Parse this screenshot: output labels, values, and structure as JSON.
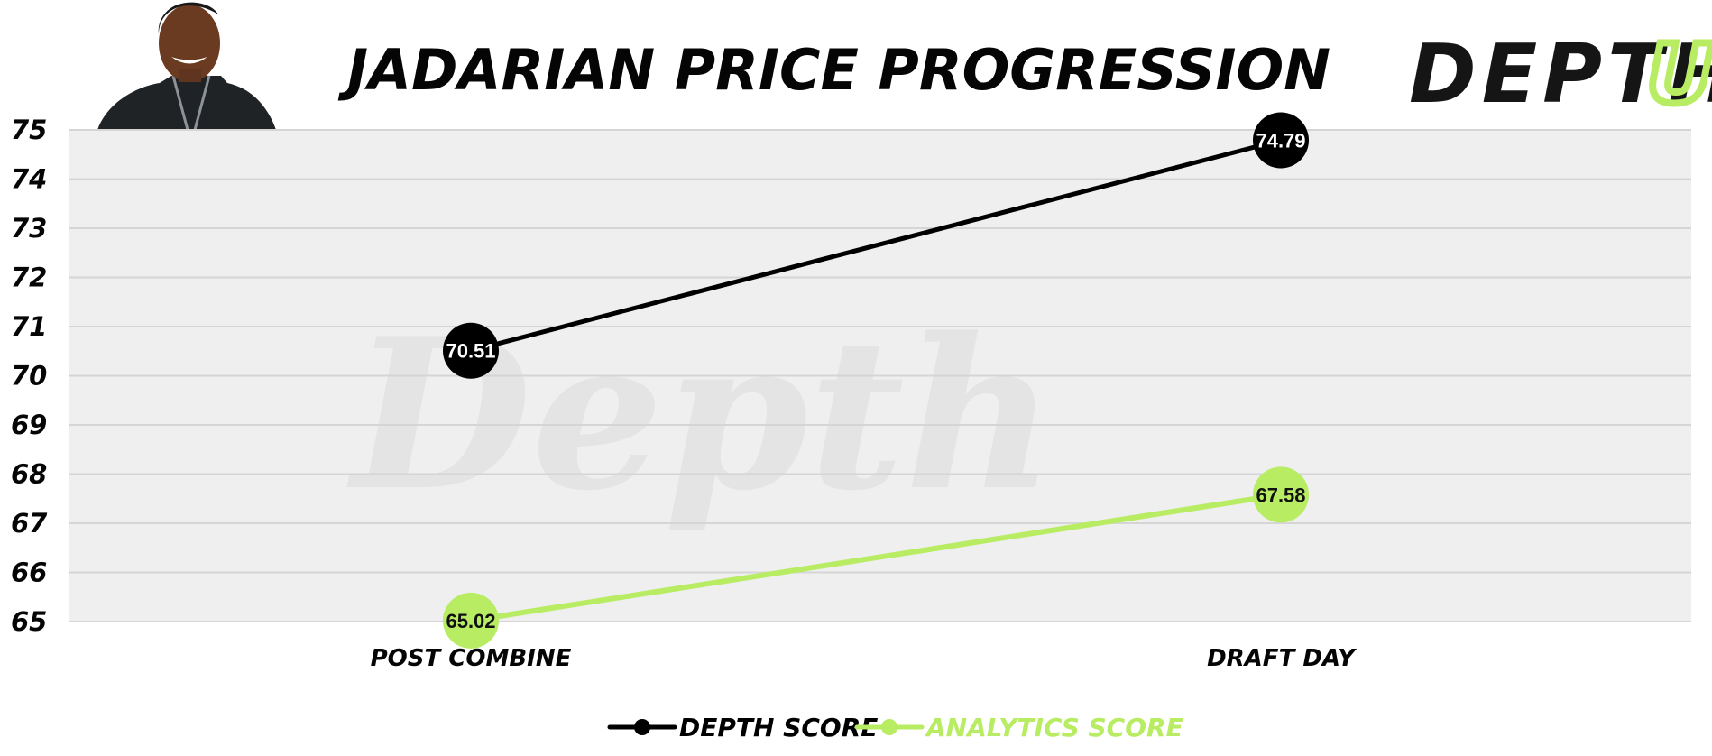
{
  "chart_data": {
    "type": "line",
    "title": "JADARIAN PRICE PROGRESSION",
    "logo_text": "DEPTH",
    "logo_accent_text": "U",
    "watermark_text": "Depth",
    "categories": [
      "POST COMBINE",
      "DRAFT DAY"
    ],
    "ylim": [
      65,
      75
    ],
    "yticks": [
      "75",
      "74",
      "73",
      "72",
      "71",
      "70",
      "69",
      "68",
      "67",
      "66",
      "65"
    ],
    "grid": true,
    "legend_position": "bottom-center",
    "series": [
      {
        "name": "DEPTH SCORE",
        "values": [
          70.51,
          74.79
        ],
        "labels": [
          "70.51",
          "74.79"
        ],
        "color": "#000000",
        "label_color": "#ffffff"
      },
      {
        "name": "ANALYTICS SCORE",
        "values": [
          65.02,
          67.58
        ],
        "labels": [
          "65.02",
          "67.58"
        ],
        "color": "#b8ec63",
        "label_color": "#111111"
      }
    ],
    "colors": {
      "plot_background": "#efefef",
      "grid": "#d5d5d5",
      "text": "#050505",
      "logo": "#151515",
      "logo_accent": "#b8ec63",
      "watermark": "#e2e2e2"
    }
  }
}
